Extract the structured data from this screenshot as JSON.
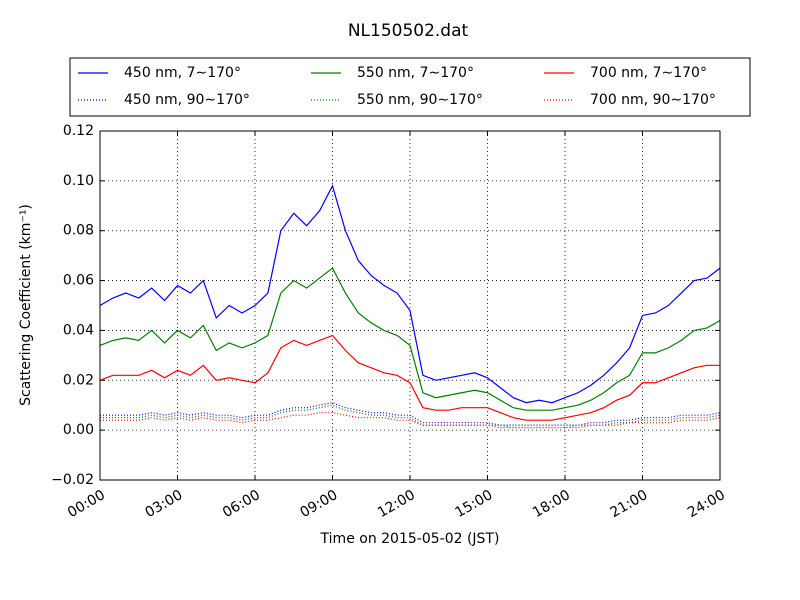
{
  "chart_data": {
    "type": "line",
    "title": "NL150502.dat",
    "x_label": "Time on 2015-05-02 (JST)",
    "y_label": "Scattering Coefficient (km⁻¹)",
    "grid": true,
    "legend": "top",
    "xlim": [
      0,
      24
    ],
    "xticks": [
      {
        "value": 0,
        "label": "00:00"
      },
      {
        "value": 3,
        "label": "03:00"
      },
      {
        "value": 6,
        "label": "06:00"
      },
      {
        "value": 9,
        "label": "09:00"
      },
      {
        "value": 12,
        "label": "12:00"
      },
      {
        "value": 15,
        "label": "15:00"
      },
      {
        "value": 18,
        "label": "18:00"
      },
      {
        "value": 21,
        "label": "21:00"
      },
      {
        "value": 24,
        "label": "24:00"
      }
    ],
    "ylim": [
      -0.02,
      0.12
    ],
    "yticks": [
      {
        "value": -0.02,
        "label": "−0.02"
      },
      {
        "value": 0,
        "label": "0.00"
      },
      0.02,
      0.04,
      0.06,
      0.08,
      {
        "value": 0.1,
        "label": "0.10"
      },
      0.12
    ],
    "x": [
      0,
      0.5,
      1,
      1.5,
      2,
      2.5,
      3,
      3.5,
      4,
      4.5,
      5,
      5.5,
      6,
      6.5,
      7,
      7.5,
      8,
      8.5,
      9,
      9.5,
      10,
      10.5,
      11,
      11.5,
      12,
      12.5,
      13,
      13.5,
      14,
      14.5,
      15,
      15.5,
      16,
      16.5,
      17,
      17.5,
      18,
      18.5,
      19,
      19.5,
      20,
      20.5,
      21,
      21.5,
      22,
      22.5,
      23,
      23.5,
      24
    ],
    "series": [
      {
        "name": "450 nm, 7∼170°",
        "color": "#0000ff",
        "linestyle": "solid",
        "values": [
          0.05,
          0.053,
          0.055,
          0.053,
          0.057,
          0.052,
          0.058,
          0.055,
          0.06,
          0.045,
          0.05,
          0.047,
          0.05,
          0.055,
          0.08,
          0.087,
          0.082,
          0.088,
          0.098,
          0.08,
          0.068,
          0.062,
          0.058,
          0.055,
          0.048,
          0.022,
          0.02,
          0.021,
          0.022,
          0.023,
          0.021,
          0.017,
          0.013,
          0.011,
          0.012,
          0.011,
          0.013,
          0.015,
          0.018,
          0.022,
          0.027,
          0.033,
          0.046,
          0.047,
          0.05,
          0.055,
          0.06,
          0.061,
          0.065
        ]
      },
      {
        "name": "550 nm, 7∼170°",
        "color": "#008000",
        "linestyle": "solid",
        "values": [
          0.034,
          0.036,
          0.037,
          0.036,
          0.04,
          0.035,
          0.04,
          0.037,
          0.042,
          0.032,
          0.035,
          0.033,
          0.035,
          0.038,
          0.055,
          0.06,
          0.057,
          0.061,
          0.065,
          0.055,
          0.047,
          0.043,
          0.04,
          0.038,
          0.034,
          0.015,
          0.013,
          0.014,
          0.015,
          0.016,
          0.015,
          0.012,
          0.009,
          0.008,
          0.008,
          0.008,
          0.009,
          0.01,
          0.012,
          0.015,
          0.019,
          0.022,
          0.031,
          0.031,
          0.033,
          0.036,
          0.04,
          0.041,
          0.044
        ]
      },
      {
        "name": "700 nm, 7∼170°",
        "color": "#ff0000",
        "linestyle": "solid",
        "values": [
          0.02,
          0.022,
          0.022,
          0.022,
          0.024,
          0.021,
          0.024,
          0.022,
          0.026,
          0.02,
          0.021,
          0.02,
          0.019,
          0.023,
          0.033,
          0.036,
          0.034,
          0.036,
          0.038,
          0.032,
          0.027,
          0.025,
          0.023,
          0.022,
          0.019,
          0.009,
          0.008,
          0.008,
          0.009,
          0.009,
          0.009,
          0.007,
          0.005,
          0.004,
          0.004,
          0.004,
          0.005,
          0.006,
          0.007,
          0.009,
          0.012,
          0.014,
          0.019,
          0.019,
          0.021,
          0.023,
          0.025,
          0.026,
          0.026
        ]
      },
      {
        "name": "450 nm, 90∼170°",
        "color": "#0000ff",
        "linestyle": "dotted",
        "values": [
          0.006,
          0.006,
          0.006,
          0.006,
          0.007,
          0.006,
          0.007,
          0.006,
          0.007,
          0.006,
          0.006,
          0.005,
          0.006,
          0.006,
          0.008,
          0.009,
          0.009,
          0.01,
          0.011,
          0.009,
          0.008,
          0.007,
          0.007,
          0.006,
          0.006,
          0.003,
          0.003,
          0.003,
          0.003,
          0.003,
          0.003,
          0.002,
          0.002,
          0.002,
          0.002,
          0.002,
          0.002,
          0.002,
          0.003,
          0.003,
          0.004,
          0.004,
          0.005,
          0.005,
          0.005,
          0.006,
          0.006,
          0.006,
          0.007
        ]
      },
      {
        "name": "550 nm, 90∼170°",
        "color": "#008000",
        "linestyle": "dotted",
        "values": [
          0.005,
          0.005,
          0.005,
          0.005,
          0.006,
          0.005,
          0.006,
          0.005,
          0.006,
          0.005,
          0.005,
          0.004,
          0.005,
          0.005,
          0.007,
          0.008,
          0.008,
          0.009,
          0.01,
          0.008,
          0.007,
          0.006,
          0.006,
          0.005,
          0.005,
          0.002,
          0.002,
          0.002,
          0.002,
          0.002,
          0.002,
          0.002,
          0.001,
          0.001,
          0.001,
          0.001,
          0.001,
          0.002,
          0.002,
          0.002,
          0.003,
          0.003,
          0.004,
          0.004,
          0.004,
          0.005,
          0.005,
          0.005,
          0.006
        ]
      },
      {
        "name": "700 nm, 90∼170°",
        "color": "#ff0000",
        "linestyle": "dotted",
        "values": [
          0.004,
          0.004,
          0.004,
          0.004,
          0.005,
          0.004,
          0.005,
          0.004,
          0.005,
          0.004,
          0.004,
          0.003,
          0.004,
          0.004,
          0.005,
          0.006,
          0.006,
          0.007,
          0.007,
          0.006,
          0.005,
          0.005,
          0.005,
          0.004,
          0.004,
          0.002,
          0.002,
          0.002,
          0.002,
          0.002,
          0.002,
          0.001,
          0.001,
          0.001,
          0.001,
          0.001,
          0.001,
          0.001,
          0.002,
          0.002,
          0.002,
          0.003,
          0.003,
          0.003,
          0.003,
          0.004,
          0.004,
          0.004,
          0.005
        ]
      }
    ]
  }
}
